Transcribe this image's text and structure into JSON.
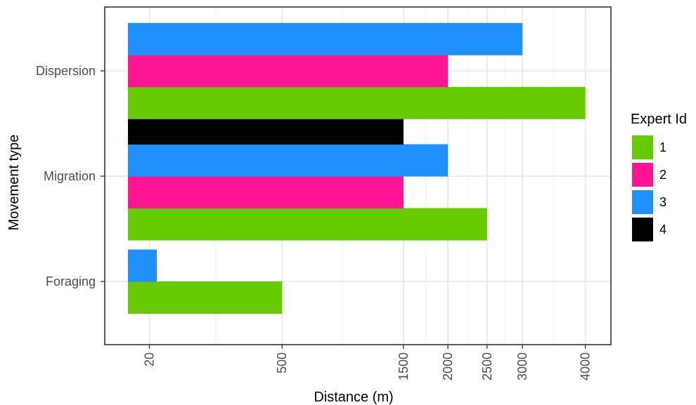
{
  "chart_data": {
    "type": "bar",
    "orientation": "horizontal",
    "xlabel": "Distance (m)",
    "ylabel": "Movement type",
    "categories": [
      "Foraging",
      "Migration",
      "Dispersion"
    ],
    "x_ticks": [
      20,
      500,
      1500,
      2000,
      2500,
      3000,
      4000
    ],
    "x_scale": "sqrt",
    "xlim": [
      0,
      4200
    ],
    "grid": true,
    "legend": {
      "title": "Expert Id",
      "position": "right",
      "entries": [
        {
          "label": "1",
          "color": "#66cc00"
        },
        {
          "label": "2",
          "color": "#ff1493"
        },
        {
          "label": "3",
          "color": "#1e90ff"
        },
        {
          "label": "4",
          "color": "#000000"
        }
      ]
    },
    "series": [
      {
        "name": "1",
        "color": "#66cc00",
        "values": {
          "Foraging": 500,
          "Migration": 2500,
          "Dispersion": 4000
        }
      },
      {
        "name": "2",
        "color": "#ff1493",
        "values": {
          "Foraging": null,
          "Migration": 1500,
          "Dispersion": 2000
        }
      },
      {
        "name": "3",
        "color": "#1e90ff",
        "values": {
          "Foraging": 30,
          "Migration": 2000,
          "Dispersion": 3000
        }
      },
      {
        "name": "4",
        "color": "#000000",
        "values": {
          "Foraging": null,
          "Migration": 1500,
          "Dispersion": null
        }
      }
    ]
  }
}
